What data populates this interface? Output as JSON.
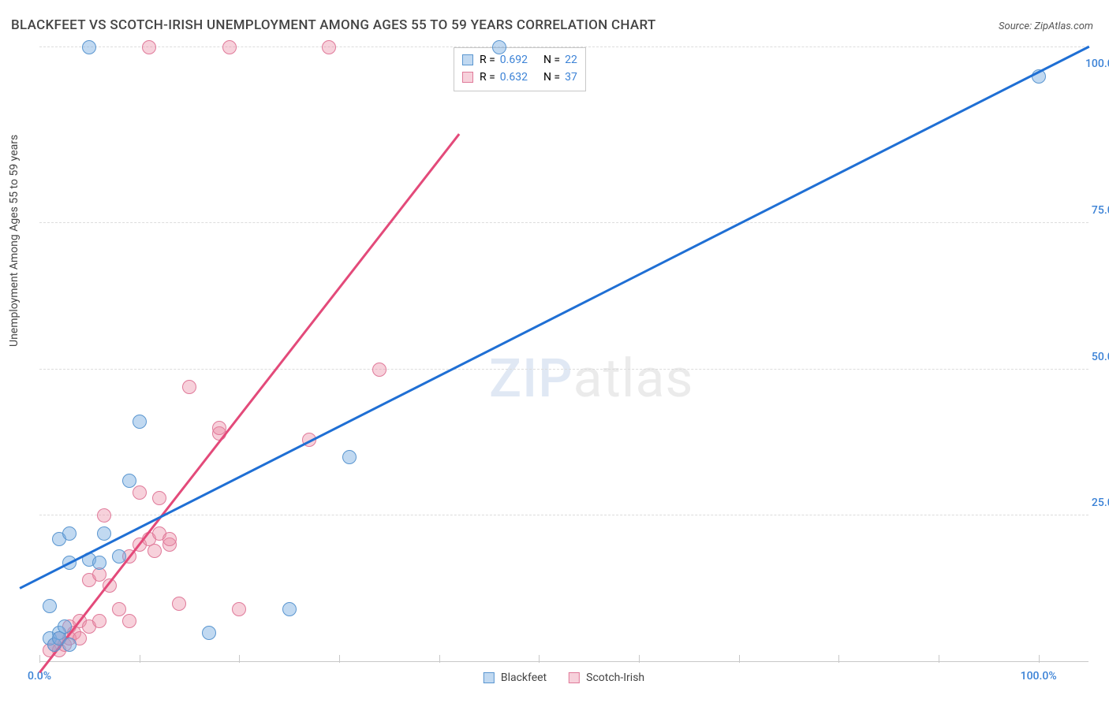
{
  "title": "BLACKFEET VS SCOTCH-IRISH UNEMPLOYMENT AMONG AGES 55 TO 59 YEARS CORRELATION CHART",
  "source": "Source: ZipAtlas.com",
  "y_axis_label": "Unemployment Among Ages 55 to 59 years",
  "watermark": {
    "zip": "ZIP",
    "atlas": "atlas"
  },
  "chart": {
    "type": "scatter-with-regression",
    "xlim": [
      0,
      105
    ],
    "ylim": [
      0,
      105
    ],
    "grid_y_positions": [
      25,
      50,
      75,
      105
    ],
    "grid_x_positions": [
      0,
      10,
      20,
      30,
      40,
      50,
      60,
      70,
      80,
      90,
      100
    ],
    "y_tick_labels": [
      {
        "pos": 25,
        "text": "25.0%"
      },
      {
        "pos": 50,
        "text": "50.0%"
      },
      {
        "pos": 75,
        "text": "75.0%"
      },
      {
        "pos": 100,
        "text": "100.0%"
      }
    ],
    "x_tick_labels": [
      {
        "pos": 0,
        "text": "0.0%"
      },
      {
        "pos": 100,
        "text": "100.0%"
      }
    ],
    "tick_label_color": "#3b82d6",
    "grid_color": "#dcdcdc",
    "background_color": "#ffffff",
    "point_radius": 9,
    "series": {
      "blackfeet": {
        "label": "Blackfeet",
        "fill": "rgba(118,170,224,0.45)",
        "stroke": "#5a96d0",
        "trend_color": "#1f6fd4",
        "stats": {
          "R": "0.692",
          "N": "22"
        },
        "trend": {
          "x1": -2,
          "y1": 12.5,
          "x2": 105,
          "y2": 105
        },
        "points": [
          {
            "x": 1,
            "y": 4
          },
          {
            "x": 1.5,
            "y": 3
          },
          {
            "x": 2,
            "y": 5
          },
          {
            "x": 2,
            "y": 4
          },
          {
            "x": 2.5,
            "y": 6
          },
          {
            "x": 3,
            "y": 3
          },
          {
            "x": 1,
            "y": 9.5
          },
          {
            "x": 3,
            "y": 17
          },
          {
            "x": 2,
            "y": 21
          },
          {
            "x": 3,
            "y": 22
          },
          {
            "x": 5,
            "y": 17.5
          },
          {
            "x": 6,
            "y": 17
          },
          {
            "x": 6.5,
            "y": 22
          },
          {
            "x": 8,
            "y": 18
          },
          {
            "x": 9,
            "y": 31
          },
          {
            "x": 10,
            "y": 41
          },
          {
            "x": 17,
            "y": 5
          },
          {
            "x": 25,
            "y": 9
          },
          {
            "x": 31,
            "y": 35
          },
          {
            "x": 5,
            "y": 105
          },
          {
            "x": 46,
            "y": 105
          },
          {
            "x": 100,
            "y": 100
          }
        ]
      },
      "scotch_irish": {
        "label": "Scotch-Irish",
        "fill": "rgba(235,140,165,0.40)",
        "stroke": "#e07a9a",
        "trend_color": "#e34a7a",
        "stats": {
          "R": "0.632",
          "N": "37"
        },
        "trend": {
          "x1": 0,
          "y1": -2,
          "x2": 42,
          "y2": 90
        },
        "points": [
          {
            "x": 1,
            "y": 2
          },
          {
            "x": 1.5,
            "y": 3
          },
          {
            "x": 2,
            "y": 2
          },
          {
            "x": 2,
            "y": 4
          },
          {
            "x": 2.5,
            "y": 3
          },
          {
            "x": 3,
            "y": 4
          },
          {
            "x": 3,
            "y": 6
          },
          {
            "x": 3.5,
            "y": 5
          },
          {
            "x": 4,
            "y": 4
          },
          {
            "x": 4,
            "y": 7
          },
          {
            "x": 5,
            "y": 6
          },
          {
            "x": 5,
            "y": 14
          },
          {
            "x": 6,
            "y": 7
          },
          {
            "x": 6,
            "y": 15
          },
          {
            "x": 6.5,
            "y": 25
          },
          {
            "x": 7,
            "y": 13
          },
          {
            "x": 8,
            "y": 9
          },
          {
            "x": 9,
            "y": 18
          },
          {
            "x": 9,
            "y": 7
          },
          {
            "x": 10,
            "y": 29
          },
          {
            "x": 10,
            "y": 20
          },
          {
            "x": 11,
            "y": 21
          },
          {
            "x": 11.5,
            "y": 19
          },
          {
            "x": 12,
            "y": 22
          },
          {
            "x": 12,
            "y": 28
          },
          {
            "x": 13,
            "y": 20
          },
          {
            "x": 13,
            "y": 21
          },
          {
            "x": 14,
            "y": 10
          },
          {
            "x": 15,
            "y": 47
          },
          {
            "x": 18,
            "y": 39
          },
          {
            "x": 18,
            "y": 40
          },
          {
            "x": 20,
            "y": 9
          },
          {
            "x": 27,
            "y": 38
          },
          {
            "x": 34,
            "y": 50
          },
          {
            "x": 11,
            "y": 105
          },
          {
            "x": 19,
            "y": 105
          },
          {
            "x": 29,
            "y": 105
          }
        ]
      }
    }
  },
  "legend": [
    {
      "key": "blackfeet"
    },
    {
      "key": "scotch_irish"
    }
  ]
}
